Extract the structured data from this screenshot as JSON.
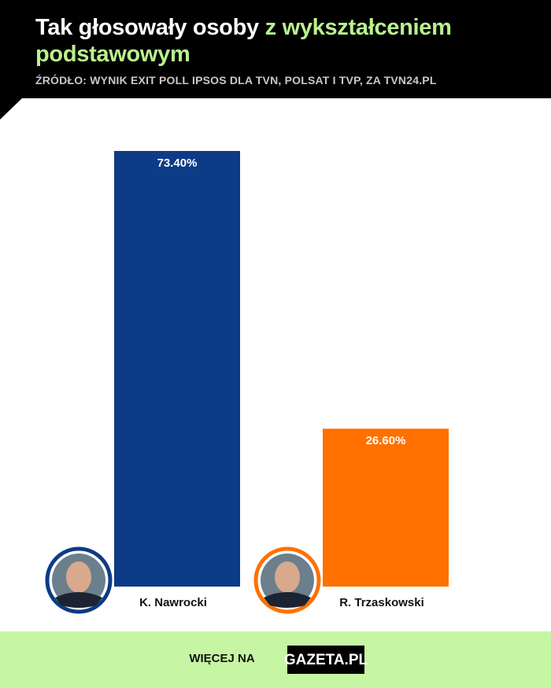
{
  "chart_data": {
    "type": "bar",
    "title": {
      "lead": "Tak głosowały osoby",
      "highlight": "z wykształceniem podstawowym"
    },
    "source": "ŹRÓDŁO: WYNIK EXIT POLL IPSOS DLA TVN, POLSAT I TVP, ZA TVN24.PL",
    "categories": [
      "K. Nawrocki",
      "R. Trzaskowski"
    ],
    "values": [
      73.4,
      26.6
    ],
    "value_labels": [
      "73.40%",
      "26.60%"
    ],
    "colors": [
      "#0d3b85",
      "#ff7000"
    ]
  },
  "footer": {
    "text": "WIĘCEJ NA",
    "logo": "GAZETA.PL"
  }
}
